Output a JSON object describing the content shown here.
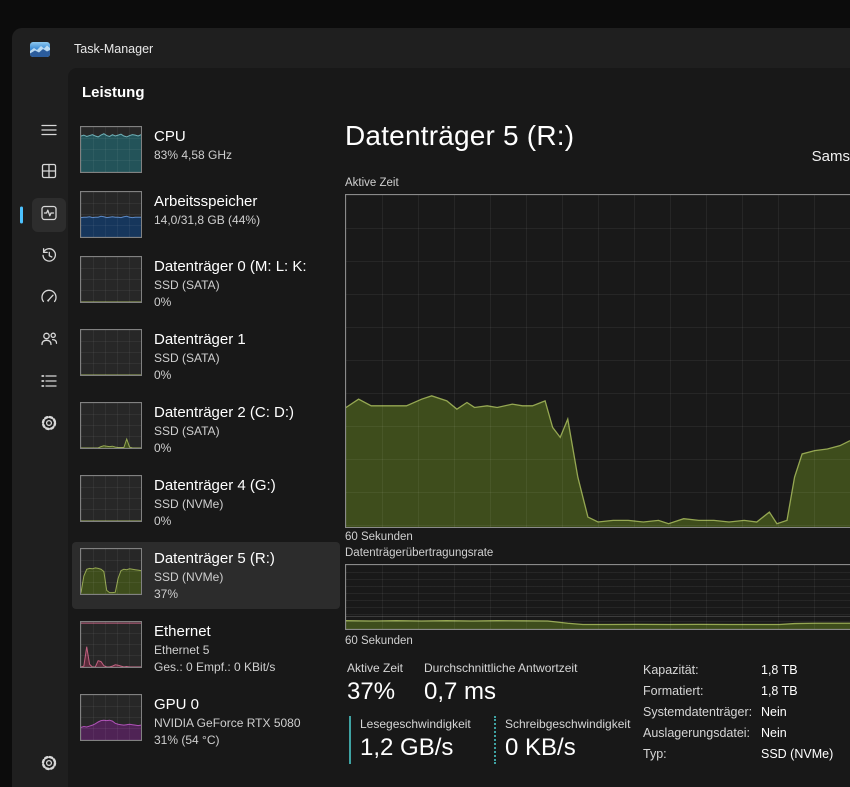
{
  "window": {
    "title": "Task-Manager"
  },
  "nav_rail": {
    "items": [
      {
        "icon": "processes-icon"
      },
      {
        "icon": "performance-icon",
        "selected": true
      },
      {
        "icon": "app-history-icon"
      },
      {
        "icon": "startup-apps-icon"
      },
      {
        "icon": "users-icon"
      },
      {
        "icon": "details-icon"
      },
      {
        "icon": "services-icon"
      }
    ],
    "settings_icon": "settings-gear-icon"
  },
  "header": {
    "page_title": "Leistung"
  },
  "colors": {
    "accent": "#4cc2ff",
    "disk_fill": "#3e4d1c",
    "disk_line": "#95a752",
    "speed_key": "#3fa3a3"
  },
  "sidebar": {
    "items": [
      {
        "title": "CPU",
        "lines": [
          "83%  4,58 GHz",
          ""
        ],
        "spark": {
          "fill": "#235359",
          "line": "#6fb0b7",
          "values": [
            80,
            82,
            79,
            81,
            83,
            80,
            78,
            82,
            85,
            81,
            79,
            83,
            80,
            82,
            84,
            80,
            78,
            81,
            83,
            82,
            80,
            83
          ]
        }
      },
      {
        "title": "Arbeitsspeicher",
        "lines": [
          "14,0/31,8 GB (44%)",
          ""
        ],
        "spark": {
          "fill": "#16365c",
          "line": "#5b88c4",
          "values": [
            43,
            44,
            44,
            45,
            43,
            44,
            44,
            46,
            45,
            43,
            44,
            45,
            44,
            44,
            43,
            45,
            46,
            44,
            43,
            44,
            44,
            44
          ]
        }
      },
      {
        "title": "Datenträger 0 (M: L: K:",
        "lines": [
          "SSD (SATA)",
          "0%"
        ],
        "spark": {
          "fill": "#3e4d1c",
          "line": "#95a752",
          "values": [
            0,
            0,
            0,
            0,
            0,
            0,
            0,
            0,
            0,
            0,
            0,
            0,
            0,
            0,
            0,
            0,
            0,
            0,
            0,
            0,
            0,
            0
          ]
        }
      },
      {
        "title": "Datenträger 1",
        "lines": [
          "SSD (SATA)",
          "0%"
        ],
        "spark": {
          "fill": "#3e4d1c",
          "line": "#95a752",
          "values": [
            0,
            0,
            0,
            0,
            0,
            0,
            0,
            0,
            0,
            0,
            0,
            0,
            0,
            0,
            0,
            0,
            0,
            0,
            0,
            0,
            0,
            0
          ]
        }
      },
      {
        "title": "Datenträger 2 (C: D:)",
        "lines": [
          "SSD (SATA)",
          "0%"
        ],
        "spark": {
          "fill": "#3e4d1c",
          "line": "#95a752",
          "values": [
            0,
            0,
            0,
            0,
            0,
            0,
            0,
            3,
            5,
            4,
            3,
            4,
            2,
            1,
            1,
            1,
            20,
            2,
            0,
            0,
            0,
            0
          ]
        }
      },
      {
        "title": "Datenträger 4 (G:)",
        "lines": [
          "SSD (NVMe)",
          "0%"
        ],
        "spark": {
          "fill": "#3e4d1c",
          "line": "#95a752",
          "values": [
            0,
            0,
            0,
            0,
            0,
            0,
            0,
            0,
            0,
            0,
            0,
            0,
            0,
            0,
            0,
            0,
            0,
            0,
            0,
            0,
            0,
            0
          ]
        }
      },
      {
        "title": "Datenträger 5 (R:)",
        "lines": [
          "SSD (NVMe)",
          "37%"
        ],
        "selected": true,
        "spark": {
          "fill": "#3e4d1c",
          "line": "#95a752",
          "values": [
            3,
            40,
            55,
            57,
            56,
            58,
            57,
            55,
            50,
            8,
            3,
            3,
            4,
            35,
            52,
            55,
            54,
            56,
            55,
            54,
            53,
            52
          ]
        }
      },
      {
        "title": "Ethernet",
        "lines": [
          "Ethernet 5",
          "Ges.: 0  Empf.: 0 KBit/s"
        ],
        "spark": {
          "fill": "#5a2a3a",
          "line": "#c0607f",
          "topline": true,
          "values": [
            0,
            2,
            45,
            6,
            0,
            0,
            14,
            12,
            3,
            0,
            0,
            2,
            5,
            4,
            2,
            0,
            1,
            0,
            0,
            0,
            0,
            0
          ]
        }
      },
      {
        "title": "GPU 0",
        "lines": [
          "NVIDIA GeForce RTX 5080",
          "31% (54 °C)"
        ],
        "spark": {
          "fill": "#4f2355",
          "line": "#b052b8",
          "values": [
            28,
            30,
            29,
            31,
            33,
            36,
            40,
            43,
            44,
            43,
            44,
            42,
            37,
            35,
            34,
            33,
            34,
            35,
            34,
            33,
            32,
            33
          ]
        }
      }
    ]
  },
  "main": {
    "title": "Datenträger 5 (R:)",
    "device_name": "Sams",
    "chart1_label": "Aktive Zeit",
    "chart1_axis": "60 Sekunden",
    "chart2_label": "Datenträgerübertragungsrate",
    "chart2_axis": "60 Sekunden",
    "stats": {
      "active_time": {
        "label": "Aktive Zeit",
        "value": "37%"
      },
      "avg_response": {
        "label": "Durchschnittliche Antwortzeit",
        "value": "0,7 ms"
      },
      "read_speed": {
        "label": "Lesegeschwindigkeit",
        "value": "1,2 GB/s"
      },
      "write_speed": {
        "label": "Schreibgeschwindigkeit",
        "value": "0 KB/s"
      }
    },
    "details": [
      {
        "label": "Kapazität:",
        "value": "1,8 TB"
      },
      {
        "label": "Formatiert:",
        "value": "1,8 TB"
      },
      {
        "label": "Systemdatenträger:",
        "value": "Nein"
      },
      {
        "label": "Auslagerungsdatei:",
        "value": "Nein"
      },
      {
        "label": "Typ:",
        "value": "SSD (NVMe)"
      }
    ]
  },
  "chart_data": [
    {
      "type": "area",
      "title": "Aktive Zeit",
      "xlabel": "60 Sekunden",
      "ylabel": "%",
      "ylim": [
        0,
        100
      ],
      "grid": true,
      "fill": "#3e4d1c",
      "line": "#95a752",
      "points": [
        [
          0,
          36
        ],
        [
          0.025,
          38.5
        ],
        [
          0.05,
          36.5
        ],
        [
          0.09,
          36.5
        ],
        [
          0.12,
          36.5
        ],
        [
          0.15,
          38.5
        ],
        [
          0.17,
          39.5
        ],
        [
          0.2,
          38
        ],
        [
          0.22,
          35.5
        ],
        [
          0.24,
          37.5
        ],
        [
          0.255,
          36
        ],
        [
          0.28,
          36.5
        ],
        [
          0.3,
          36
        ],
        [
          0.33,
          37
        ],
        [
          0.35,
          36.5
        ],
        [
          0.37,
          36.5
        ],
        [
          0.395,
          38
        ],
        [
          0.41,
          30
        ],
        [
          0.425,
          27
        ],
        [
          0.44,
          32.5
        ],
        [
          0.46,
          15
        ],
        [
          0.48,
          3
        ],
        [
          0.5,
          1.5
        ],
        [
          0.53,
          2
        ],
        [
          0.56,
          2
        ],
        [
          0.59,
          1.5
        ],
        [
          0.62,
          2
        ],
        [
          0.64,
          1
        ],
        [
          0.67,
          2.5
        ],
        [
          0.7,
          2
        ],
        [
          0.73,
          2
        ],
        [
          0.76,
          1.5
        ],
        [
          0.79,
          2
        ],
        [
          0.815,
          1.5
        ],
        [
          0.84,
          4.5
        ],
        [
          0.855,
          1
        ],
        [
          0.875,
          2
        ],
        [
          0.89,
          15
        ],
        [
          0.905,
          22
        ],
        [
          0.93,
          23
        ],
        [
          0.955,
          23.5
        ],
        [
          0.98,
          24.5
        ],
        [
          1,
          26
        ]
      ]
    },
    {
      "type": "area",
      "title": "Datenträgerübertragungsrate",
      "xlabel": "60 Sekunden",
      "ylabel": "relative height %",
      "ylim": [
        0,
        100
      ],
      "grid": true,
      "fill": "#3e4d1c",
      "line": "#95a752",
      "points": [
        [
          0,
          13
        ],
        [
          0.05,
          12.5
        ],
        [
          0.1,
          13
        ],
        [
          0.15,
          12.5
        ],
        [
          0.2,
          13
        ],
        [
          0.25,
          12.5
        ],
        [
          0.3,
          13
        ],
        [
          0.35,
          12.8
        ],
        [
          0.4,
          12.5
        ],
        [
          0.44,
          9
        ],
        [
          0.47,
          7
        ],
        [
          0.52,
          7
        ],
        [
          0.58,
          7.2
        ],
        [
          0.64,
          7
        ],
        [
          0.7,
          7.2
        ],
        [
          0.76,
          7
        ],
        [
          0.82,
          7
        ],
        [
          0.86,
          7
        ],
        [
          0.89,
          8.5
        ],
        [
          0.93,
          9
        ],
        [
          1,
          9
        ]
      ]
    }
  ]
}
